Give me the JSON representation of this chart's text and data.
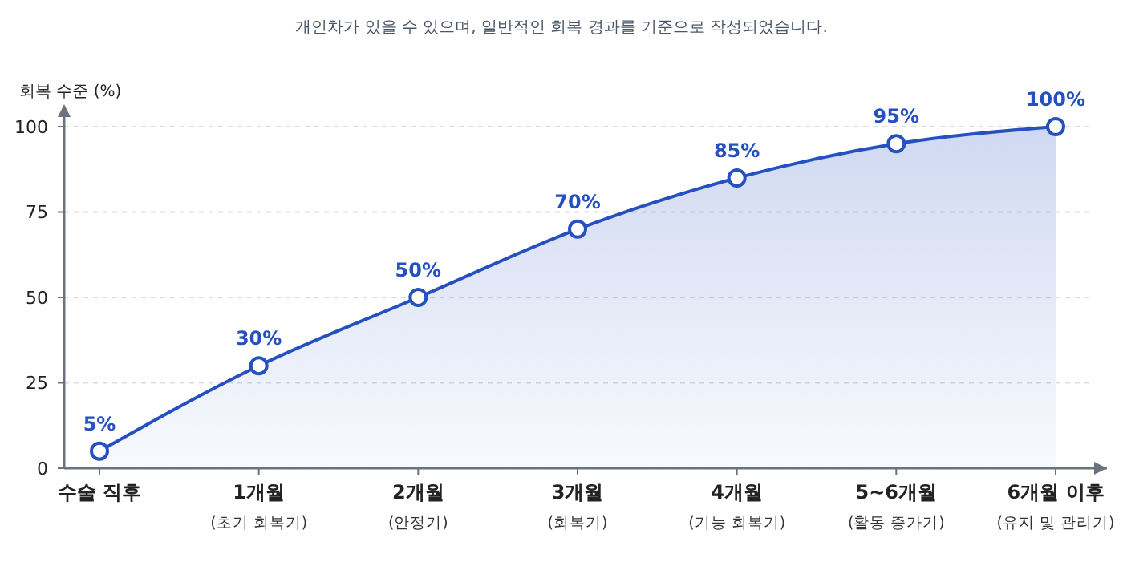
{
  "chart_data": {
    "type": "area",
    "subtitle": "개인차가 있을 수 있으며, 일반적인 회복 경과를 기준으로 작성되었습니다.",
    "ylabel": "회복 수준 (%)",
    "categories": [
      "수술 직후",
      "1개월\n(초기 회복기)",
      "2개월\n(안정기)",
      "3개월\n(회복기)",
      "4개월\n(기능 회복기)",
      "5~6개월\n(활동 증가기)",
      "6개월 이후\n(유지 및 관리기)"
    ],
    "series": [
      {
        "color": "#2550c0",
        "values": [
          5,
          30,
          50,
          70,
          85,
          95,
          100
        ],
        "value_labels": [
          "5%",
          "30%",
          "50%",
          "70%",
          "85%",
          "95%",
          "100%"
        ]
      }
    ],
    "ylim": [
      0,
      100
    ],
    "yticks": [
      0,
      25,
      50,
      75,
      100
    ],
    "grid": "y",
    "marker": "circle",
    "line_style": "solid"
  }
}
